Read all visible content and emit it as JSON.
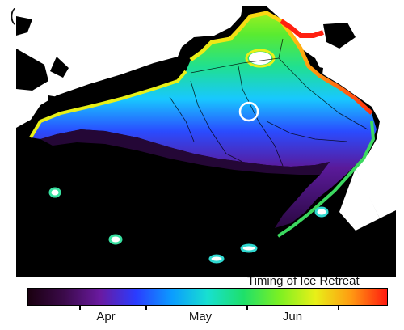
{
  "panel": {
    "label": "(c)"
  },
  "colorbar": {
    "title": "Timing of Ice Retreat",
    "labels": [
      "Apr",
      "May",
      "Jun"
    ],
    "colors": [
      "#1a0010",
      "#3b0a4a",
      "#6a1aa0",
      "#2a3cff",
      "#0b9cff",
      "#18e0d0",
      "#1ee06a",
      "#7cf022",
      "#e8f018",
      "#ff9a12",
      "#ff1a10"
    ]
  },
  "map": {
    "colors": {
      "ocean": "#000000",
      "land": "#ffffff",
      "ice_late": "#ff2010",
      "ice_jun": "#1ee06a",
      "ice_may": "#18d8ff",
      "ice_apr": "#4a30d8",
      "ice_early": "#2a0840"
    },
    "marker_icon": "circle-marker"
  }
}
